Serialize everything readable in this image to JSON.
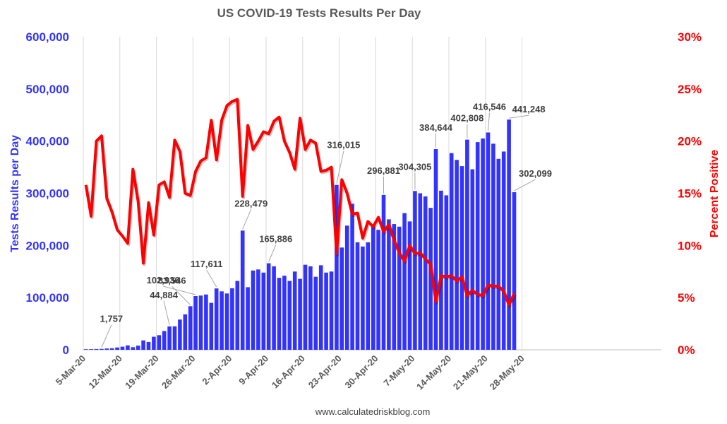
{
  "chart_data": {
    "type": "bar+line",
    "title": "US COVID-19 Tests Results Per Day",
    "ylabel_left": "Tests Results per Day",
    "ylabel_right": "Percent Positive",
    "ylim_left": [
      0,
      600000
    ],
    "ylim_right": [
      0,
      30
    ],
    "yticks_left": [
      "0",
      "100,000",
      "200,000",
      "300,000",
      "400,000",
      "500,000",
      "600,000"
    ],
    "yticks_right": [
      "0%",
      "5%",
      "10%",
      "15%",
      "20%",
      "25%",
      "30%"
    ],
    "xticks": [
      "5-Mar-20",
      "12-Mar-20",
      "19-Mar-20",
      "26-Mar-20",
      "2-Apr-20",
      "9-Apr-20",
      "16-Apr-20",
      "23-Apr-20",
      "30-Apr-20",
      "7-May-20",
      "14-May-20",
      "21-May-20",
      "28-May-20"
    ],
    "x_start": "2020-03-05",
    "bar_color": "#3333ff",
    "line_color": "#ff0000",
    "grid": "vertical",
    "source": "www.calculatedriskblog.com",
    "series": [
      {
        "name": "Tests Results per Day",
        "type": "bar",
        "values": [
          1000,
          1200,
          1500,
          1757,
          2500,
          3000,
          4500,
          6000,
          8500,
          5000,
          8000,
          18000,
          15000,
          25000,
          28000,
          36000,
          44884,
          45000,
          58000,
          68000,
          83546,
          102936,
          104000,
          106000,
          90000,
          117611,
          112000,
          108000,
          118000,
          132000,
          228479,
          120000,
          152000,
          154000,
          148000,
          165886,
          160000,
          138000,
          142000,
          132000,
          150000,
          136000,
          163000,
          160000,
          140000,
          162000,
          148000,
          150000,
          316015,
          196000,
          238000,
          280000,
          206000,
          198000,
          206000,
          237000,
          230000,
          296881,
          250000,
          241000,
          236000,
          262000,
          246000,
          304305,
          300000,
          294000,
          272000,
          384644,
          305000,
          296000,
          377000,
          364000,
          352000,
          402808,
          346000,
          398000,
          405000,
          416546,
          395000,
          366000,
          380000,
          441248,
          302099
        ]
      },
      {
        "name": "Percent Positive",
        "type": "line",
        "values": [
          15.8,
          12.8,
          20.0,
          20.5,
          14.5,
          13.2,
          11.5,
          10.9,
          10.2,
          17.3,
          14.2,
          8.3,
          14.1,
          11.0,
          15.8,
          16.1,
          14.6,
          20.1,
          19.0,
          15.0,
          14.8,
          17.1,
          18.1,
          18.4,
          22.0,
          18.2,
          22.0,
          23.4,
          23.8,
          24.0,
          14.7,
          21.5,
          19.2,
          20.0,
          20.9,
          20.7,
          21.9,
          22.3,
          20.0,
          18.9,
          17.3,
          22.2,
          19.2,
          20.1,
          19.8,
          17.1,
          17.2,
          17.5,
          9.2,
          16.3,
          15.0,
          13.0,
          13.1,
          10.7,
          12.3,
          11.8,
          12.7,
          11.3,
          12.0,
          10.5,
          9.3,
          8.5,
          10.0,
          9.2,
          9.3,
          8.7,
          8.2,
          4.6,
          7.1,
          7.0,
          7.1,
          6.6,
          7.0,
          5.2,
          5.7,
          5.3,
          5.2,
          6.2,
          6.1,
          6.1,
          5.6,
          4.3,
          5.4
        ]
      }
    ],
    "annotations": [
      {
        "label": "1,757"
      },
      {
        "label": "44,884"
      },
      {
        "label": "83,546"
      },
      {
        "label": "102,936"
      },
      {
        "label": "117,611"
      },
      {
        "label": "228,479"
      },
      {
        "label": "165,886"
      },
      {
        "label": "316,015"
      },
      {
        "label": "296,881"
      },
      {
        "label": "304,305"
      },
      {
        "label": "384,644"
      },
      {
        "label": "402,808"
      },
      {
        "label": "416,546"
      },
      {
        "label": "441,248"
      },
      {
        "label": "302,099"
      }
    ]
  }
}
